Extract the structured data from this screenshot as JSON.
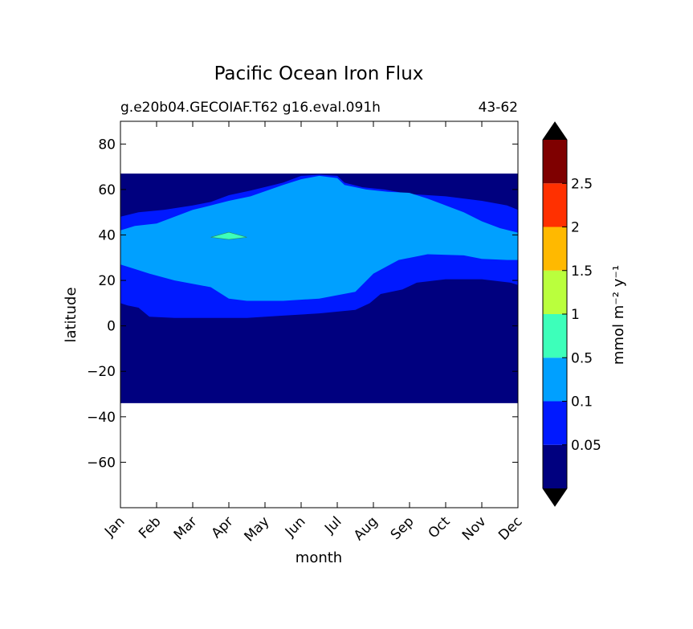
{
  "chart_data": {
    "type": "heatmap",
    "title": "Pacific Ocean Iron Flux",
    "subtitle_left": "g.e20b04.GECOIAF.T62 g16.eval.091h",
    "subtitle_right": "43-62",
    "xlabel": "month",
    "ylabel": "latitude",
    "x_ticks": [
      "Jan",
      "Feb",
      "Mar",
      "Apr",
      "May",
      "Jun",
      "Jul",
      "Aug",
      "Sep",
      "Oct",
      "Nov",
      "Dec"
    ],
    "xlim": [
      0,
      11
    ],
    "ylim": [
      -80,
      90
    ],
    "y_ticks": [
      80,
      60,
      40,
      20,
      0,
      -20,
      -40,
      -60
    ],
    "data_lat_range": [
      -34,
      67
    ],
    "colorbar": {
      "label": "mmol m⁻² y⁻¹",
      "levels": [
        0.05,
        0.1,
        0.5,
        1,
        1.5,
        2,
        2.5
      ],
      "tick_labels": [
        "0.05",
        "0.1",
        "0.5",
        "1",
        "1.5",
        "2",
        "2.5"
      ],
      "colors": [
        "#00007f",
        "#0019ff",
        "#00a0ff",
        "#3dffba",
        "#baff3d",
        "#ffb900",
        "#ff3000",
        "#7f0000"
      ],
      "extend": "both",
      "extend_color": "#000000"
    },
    "contours": {
      "level_0.05_lower_boundary": [
        [
          0,
          10
        ],
        [
          0.2,
          9
        ],
        [
          0.5,
          8
        ],
        [
          0.8,
          4
        ],
        [
          1.5,
          3.5
        ],
        [
          2.5,
          3.5
        ],
        [
          3.5,
          3.5
        ],
        [
          4.5,
          4.5
        ],
        [
          5.5,
          5.5
        ],
        [
          6.5,
          7
        ],
        [
          6.9,
          10
        ],
        [
          7.2,
          14
        ],
        [
          7.8,
          16
        ],
        [
          8.2,
          19
        ],
        [
          9,
          20.5
        ],
        [
          10,
          20.5
        ],
        [
          10.8,
          19
        ],
        [
          11,
          18
        ]
      ],
      "level_0.05_upper_boundary": [
        [
          0,
          48
        ],
        [
          0.5,
          50
        ],
        [
          1.2,
          51
        ],
        [
          2,
          53
        ],
        [
          2.5,
          54.5
        ],
        [
          3,
          57.5
        ],
        [
          3.6,
          59.5
        ],
        [
          4.5,
          63
        ],
        [
          5,
          66
        ],
        [
          5.5,
          66.5
        ],
        [
          6,
          66
        ],
        [
          6.2,
          63
        ],
        [
          6.7,
          61
        ],
        [
          7.3,
          60
        ],
        [
          8,
          58
        ],
        [
          9,
          57
        ],
        [
          10,
          55
        ],
        [
          10.7,
          53
        ],
        [
          11,
          51
        ]
      ],
      "level_0.1_lower_boundary": [
        [
          0,
          27
        ],
        [
          0.4,
          25
        ],
        [
          0.8,
          23
        ],
        [
          1.5,
          20
        ],
        [
          2.5,
          17
        ],
        [
          3,
          12
        ],
        [
          3.5,
          11
        ],
        [
          4.5,
          11
        ],
        [
          5.5,
          12
        ],
        [
          6.5,
          15
        ],
        [
          7,
          23
        ],
        [
          7.7,
          29
        ],
        [
          8.5,
          31.5
        ],
        [
          9.5,
          31
        ],
        [
          10,
          29.5
        ],
        [
          10.7,
          29
        ],
        [
          11,
          29
        ]
      ],
      "level_0.1_upper_boundary": [
        [
          0,
          42
        ],
        [
          0.4,
          44
        ],
        [
          1,
          45
        ],
        [
          1.5,
          48
        ],
        [
          2,
          51
        ],
        [
          2.5,
          53
        ],
        [
          3,
          55
        ],
        [
          3.6,
          57
        ],
        [
          4.5,
          62
        ],
        [
          5,
          64.5
        ],
        [
          5.5,
          66
        ],
        [
          6,
          65
        ],
        [
          6.2,
          62
        ],
        [
          6.8,
          60
        ],
        [
          7.4,
          59
        ],
        [
          8,
          58.5
        ],
        [
          8.5,
          56
        ],
        [
          9,
          53
        ],
        [
          9.5,
          50
        ],
        [
          10,
          46
        ],
        [
          10.5,
          43
        ],
        [
          11,
          41
        ]
      ],
      "level_0.5_patch": {
        "center": [
          3,
          39
        ],
        "lat_halfwidth": 1,
        "month_halfwidth": 0.5
      }
    }
  }
}
